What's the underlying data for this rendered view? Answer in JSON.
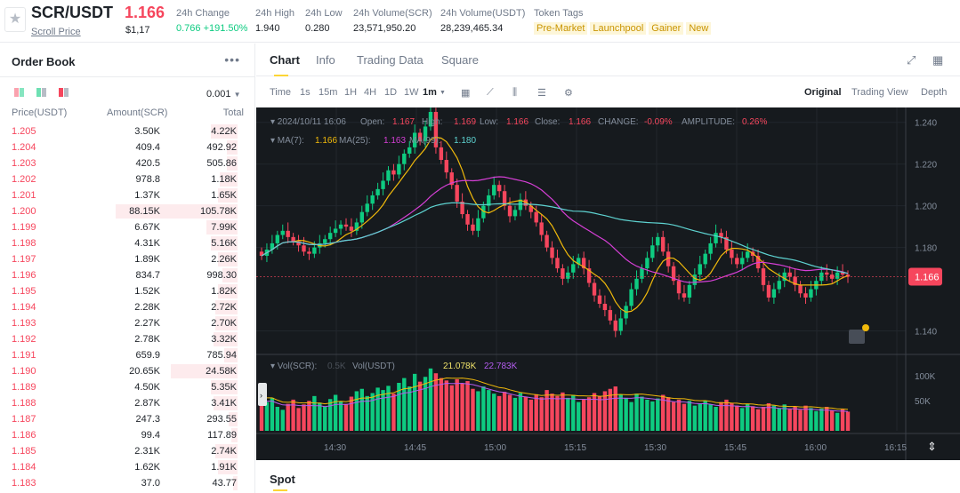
{
  "header": {
    "pair": "SCR/USDT",
    "pair_link": "Scroll Price",
    "last_price": "1.166",
    "last_price_usd": "$1,17",
    "stats": [
      {
        "label": "24h Change",
        "value": "0.766 +191.50%",
        "color": "#0ecb81"
      },
      {
        "label": "24h High",
        "value": "1.940",
        "color": "#1e2329"
      },
      {
        "label": "24h Low",
        "value": "0.280",
        "color": "#1e2329"
      },
      {
        "label": "24h Volume(SCR)",
        "value": "23,571,950.20",
        "color": "#1e2329"
      },
      {
        "label": "24h Volume(USDT)",
        "value": "28,239,465.34",
        "color": "#1e2329"
      }
    ],
    "token_tags_label": "Token Tags",
    "token_tags": [
      "Pre-Market",
      "Launchpool",
      "Gainer",
      "New"
    ]
  },
  "order_book": {
    "title": "Order Book",
    "more_icon": "ellipsis-icon",
    "precision": "0.001",
    "columns": [
      "Price(USDT)",
      "Amount(SCR)",
      "Total"
    ],
    "rows": [
      {
        "price": "1.205",
        "amount": "3.50K",
        "total": "4.22K",
        "depth": 0.12
      },
      {
        "price": "1.204",
        "amount": "409.4",
        "total": "492.92",
        "depth": 0.05
      },
      {
        "price": "1.203",
        "amount": "420.5",
        "total": "505.86",
        "depth": 0.05
      },
      {
        "price": "1.202",
        "amount": "978.8",
        "total": "1.18K",
        "depth": 0.08
      },
      {
        "price": "1.201",
        "amount": "1.37K",
        "total": "1.65K",
        "depth": 0.09
      },
      {
        "price": "1.200",
        "amount": "88.15K",
        "total": "105.78K",
        "depth": 0.55
      },
      {
        "price": "1.199",
        "amount": "6.67K",
        "total": "7.99K",
        "depth": 0.14
      },
      {
        "price": "1.198",
        "amount": "4.31K",
        "total": "5.16K",
        "depth": 0.12
      },
      {
        "price": "1.197",
        "amount": "1.89K",
        "total": "2.26K",
        "depth": 0.09
      },
      {
        "price": "1.196",
        "amount": "834.7",
        "total": "998.30",
        "depth": 0.07
      },
      {
        "price": "1.195",
        "amount": "1.52K",
        "total": "1.82K",
        "depth": 0.09
      },
      {
        "price": "1.194",
        "amount": "2.28K",
        "total": "2.72K",
        "depth": 0.1
      },
      {
        "price": "1.193",
        "amount": "2.27K",
        "total": "2.70K",
        "depth": 0.1
      },
      {
        "price": "1.192",
        "amount": "2.78K",
        "total": "3.32K",
        "depth": 0.11
      },
      {
        "price": "1.191",
        "amount": "659.9",
        "total": "785.94",
        "depth": 0.06
      },
      {
        "price": "1.190",
        "amount": "20.65K",
        "total": "24.58K",
        "depth": 0.3
      },
      {
        "price": "1.189",
        "amount": "4.50K",
        "total": "5.35K",
        "depth": 0.12
      },
      {
        "price": "1.188",
        "amount": "2.87K",
        "total": "3.41K",
        "depth": 0.11
      },
      {
        "price": "1.187",
        "amount": "247.3",
        "total": "293.55",
        "depth": 0.04
      },
      {
        "price": "1.186",
        "amount": "99.4",
        "total": "117.89",
        "depth": 0.03
      },
      {
        "price": "1.185",
        "amount": "2.31K",
        "total": "2.74K",
        "depth": 0.1
      },
      {
        "price": "1.184",
        "amount": "1.62K",
        "total": "1.91K",
        "depth": 0.09
      },
      {
        "price": "1.183",
        "amount": "37.0",
        "total": "43.77",
        "depth": 0.02
      }
    ]
  },
  "tabs": [
    "Chart",
    "Info",
    "Trading Data",
    "Square"
  ],
  "intervals": [
    "Time",
    "1s",
    "15m",
    "1H",
    "4H",
    "1D",
    "1W",
    "1m"
  ],
  "selected_interval": "1m",
  "views": [
    "Original",
    "Trading View",
    "Depth"
  ],
  "selected_view": "Original",
  "spot_label": "Spot",
  "chart_data": {
    "type": "candlestick",
    "ohlc_info": {
      "date": "2024/10/11 16:06",
      "open_label": "Open:",
      "open": "1.167",
      "high_label": "High:",
      "high": "1.169",
      "low_label": "Low:",
      "low": "1.166",
      "close_label": "Close:",
      "close": "1.166",
      "change_label": "CHANGE:",
      "change": "-0.09%",
      "amplitude_label": "AMPLITUDE:",
      "amplitude": "0.26%"
    },
    "ma_info": [
      {
        "label": "MA(7):",
        "value": "1.166",
        "color": "#f0b90b"
      },
      {
        "label": "MA(25):",
        "value": "1.163",
        "color": "#d63fd6"
      },
      {
        "label": "MA(99):",
        "value": "1.180",
        "color": "#5ed3d1"
      }
    ],
    "y_ticks": [
      1.24,
      1.22,
      1.2,
      1.18,
      1.14
    ],
    "y_tick_labels": [
      "1.240",
      "1.220",
      "1.200",
      "1.180",
      "1.140"
    ],
    "ylim": [
      1.13,
      1.245
    ],
    "current_price_label": "1.166",
    "x_tick_labels": [
      "14:30",
      "14:45",
      "15:00",
      "15:15",
      "15:30",
      "15:45",
      "16:00",
      "16:15"
    ],
    "vol_info": {
      "label1": "Vol(SCR):",
      "value1": "0.5K",
      "label2": "Vol(USDT)",
      "value2": "21.078K",
      "value3": "22.783K"
    },
    "vol_ticks": [
      "100K",
      "50K"
    ],
    "up_color": "#0ecb81",
    "down_color": "#f6465d",
    "closes": [
      1.176,
      1.179,
      1.182,
      1.186,
      1.188,
      1.185,
      1.183,
      1.181,
      1.178,
      1.177,
      1.18,
      1.182,
      1.184,
      1.187,
      1.189,
      1.191,
      1.19,
      1.188,
      1.192,
      1.197,
      1.201,
      1.205,
      1.208,
      1.212,
      1.217,
      1.215,
      1.22,
      1.225,
      1.228,
      1.235,
      1.231,
      1.238,
      1.245,
      1.228,
      1.222,
      1.216,
      1.21,
      1.202,
      1.196,
      1.191,
      1.188,
      1.194,
      1.2,
      1.205,
      1.21,
      1.207,
      1.2,
      1.195,
      1.198,
      1.203,
      1.2,
      1.197,
      1.192,
      1.186,
      1.18,
      1.175,
      1.17,
      1.165,
      1.168,
      1.172,
      1.175,
      1.17,
      1.163,
      1.157,
      1.153,
      1.15,
      1.145,
      1.14,
      1.146,
      1.152,
      1.16,
      1.165,
      1.17,
      1.175,
      1.181,
      1.185,
      1.178,
      1.171,
      1.164,
      1.158,
      1.156,
      1.162,
      1.167,
      1.172,
      1.177,
      1.182,
      1.187,
      1.185,
      1.179,
      1.175,
      1.172,
      1.175,
      1.178,
      1.176,
      1.17,
      1.162,
      1.156,
      1.16,
      1.164,
      1.168,
      1.166,
      1.162,
      1.158,
      1.156,
      1.16,
      1.164,
      1.168,
      1.167,
      1.165,
      1.168,
      1.167,
      1.166
    ],
    "volumes": [
      62,
      48,
      55,
      40,
      35,
      45,
      52,
      38,
      44,
      50,
      58,
      47,
      41,
      53,
      60,
      49,
      45,
      57,
      66,
      70,
      58,
      63,
      72,
      68,
      75,
      62,
      80,
      88,
      74,
      95,
      82,
      90,
      104,
      96,
      88,
      84,
      76,
      86,
      79,
      83,
      70,
      66,
      74,
      68,
      62,
      58,
      65,
      60,
      55,
      63,
      57,
      52,
      61,
      56,
      68,
      62,
      58,
      64,
      55,
      60,
      48,
      52,
      56,
      63,
      58,
      66,
      70,
      74,
      60,
      55,
      48,
      62,
      57,
      52,
      49,
      54,
      60,
      56,
      48,
      52,
      45,
      50,
      42,
      46,
      50,
      44,
      40,
      48,
      52,
      46,
      42,
      38,
      45,
      41,
      36,
      40,
      46,
      42,
      38,
      44,
      36,
      40,
      35,
      42,
      38,
      33,
      37,
      40,
      34,
      30,
      36,
      32
    ]
  }
}
